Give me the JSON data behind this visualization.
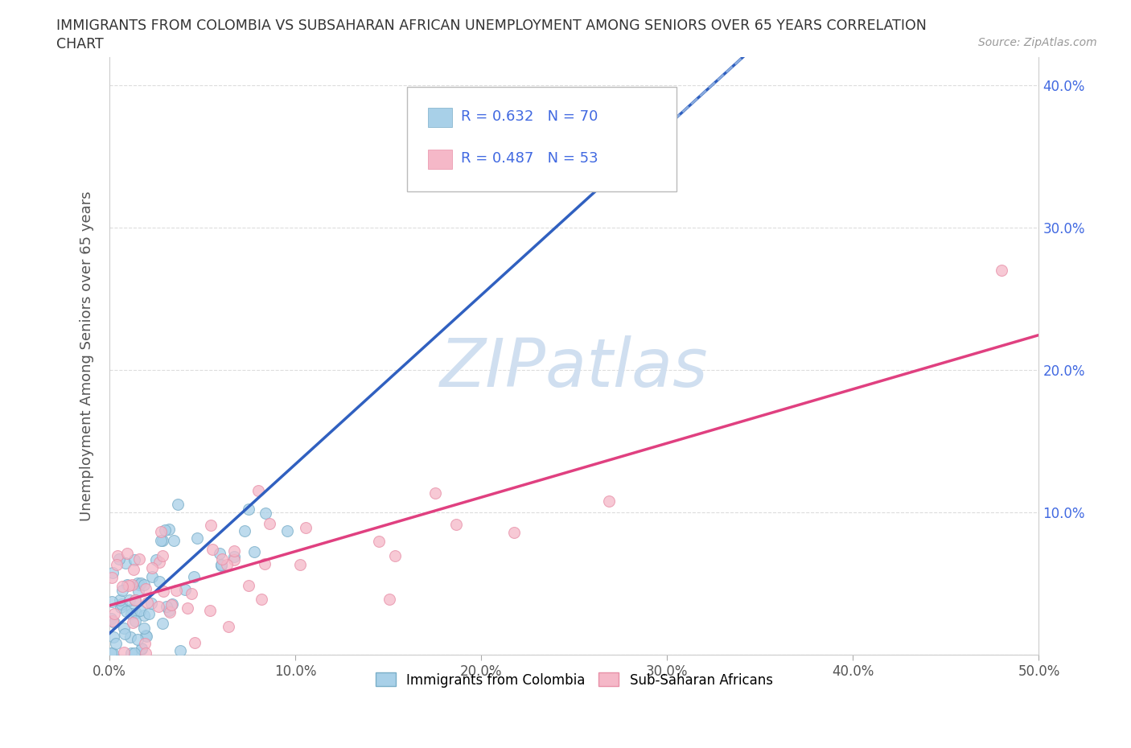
{
  "title_line1": "IMMIGRANTS FROM COLOMBIA VS SUBSAHARAN AFRICAN UNEMPLOYMENT AMONG SENIORS OVER 65 YEARS CORRELATION",
  "title_line2": "CHART",
  "source": "Source: ZipAtlas.com",
  "ylabel": "Unemployment Among Seniors over 65 years",
  "xlim": [
    0.0,
    0.5
  ],
  "ylim": [
    0.0,
    0.42
  ],
  "xticks": [
    0.0,
    0.1,
    0.2,
    0.3,
    0.4,
    0.5
  ],
  "xticklabels": [
    "0.0%",
    "10.0%",
    "20.0%",
    "30.0%",
    "40.0%",
    "50.0%"
  ],
  "yticks": [
    0.0,
    0.1,
    0.2,
    0.3,
    0.4
  ],
  "yticklabels_right": [
    "",
    "10.0%",
    "20.0%",
    "30.0%",
    "40.0%"
  ],
  "colombia_R": 0.632,
  "colombia_N": 70,
  "subsaharan_R": 0.487,
  "subsaharan_N": 53,
  "colombia_color": "#A8D0E8",
  "colombia_edge": "#7AAEC8",
  "subsaharan_color": "#F5B8C8",
  "subsaharan_edge": "#E890A8",
  "trend_colombia_color": "#3060C0",
  "trend_subsaharan_color": "#E04080",
  "trend_dashed_color": "#88AADD",
  "watermark": "ZIPatlas",
  "watermark_color": "#D0DFF0",
  "background_color": "#FFFFFF",
  "grid_color": "#DDDDDD",
  "legend_text_color": "#4169E1",
  "title_color": "#333333",
  "source_color": "#999999",
  "axis_color": "#CCCCCC",
  "right_tick_color": "#4169E1"
}
